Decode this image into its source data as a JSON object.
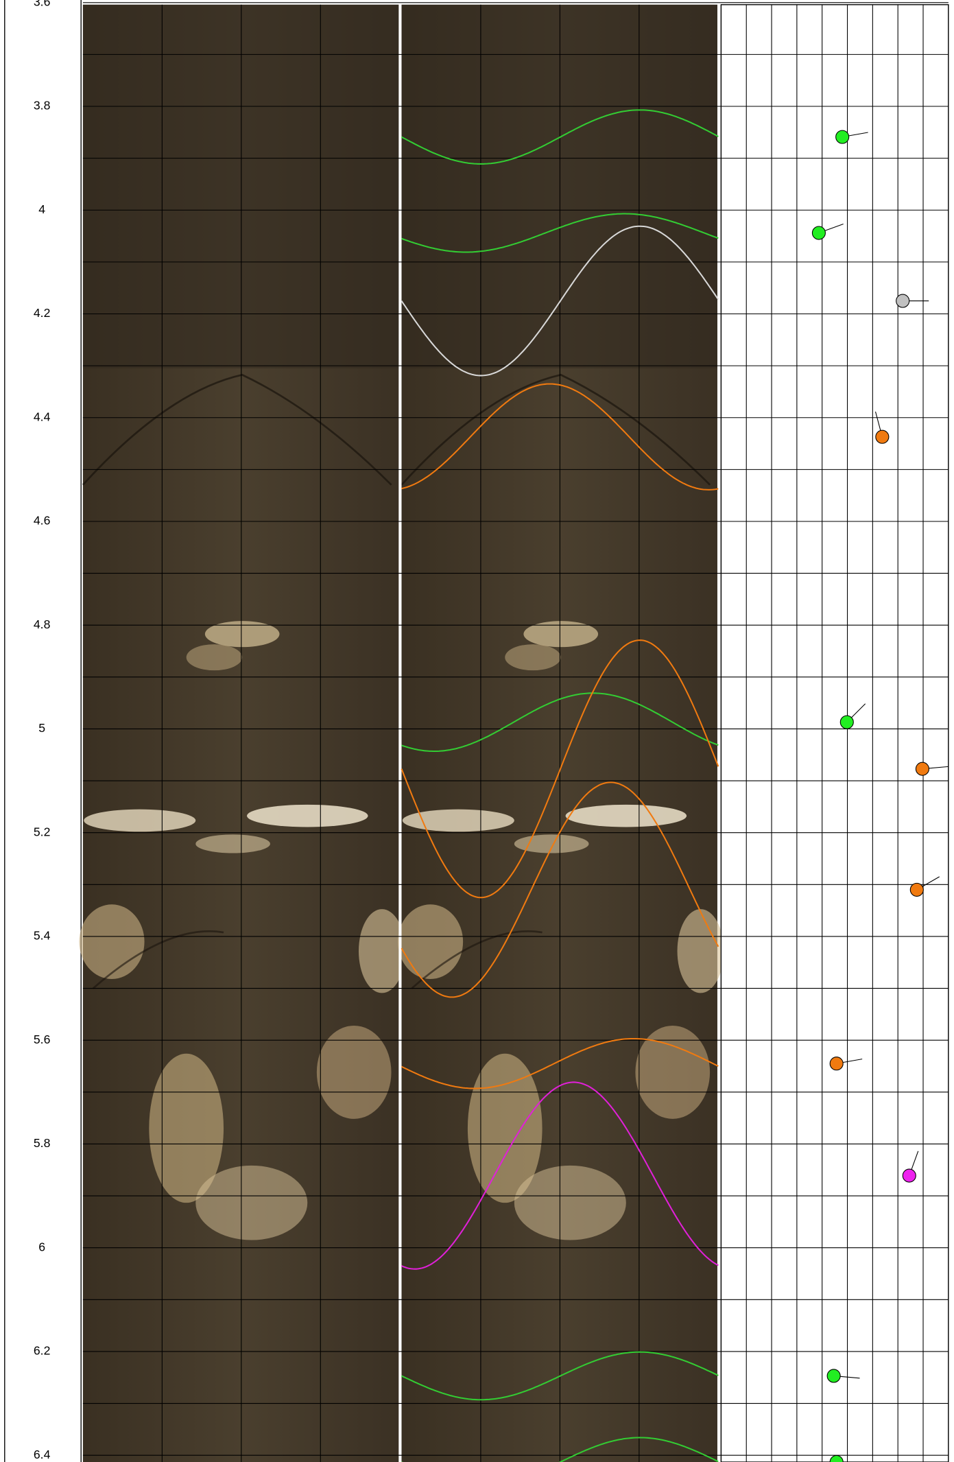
{
  "chart_data": {
    "type": "well-log",
    "ylim": [
      3.604,
      6.413
    ],
    "yticks": [
      3.6,
      3.8,
      4.0,
      4.2,
      4.4,
      4.6,
      4.8,
      5.0,
      5.2,
      5.4,
      5.6,
      5.8,
      6.0,
      6.2,
      6.4
    ],
    "minor_yticks": [
      3.7,
      3.9,
      4.1,
      4.3,
      4.5,
      4.7,
      4.9,
      5.1,
      5.3,
      5.5,
      5.7,
      5.9,
      6.1,
      6.3
    ],
    "xlim": [
      0,
      90
    ],
    "x_grid": [
      0,
      10,
      20,
      30,
      40,
      50,
      60,
      70,
      80,
      90
    ],
    "grid": true,
    "sinusoids": [
      {
        "depth": 3.859,
        "amplitude": 0.052,
        "azimuth": 90,
        "color": "#33cc33"
      },
      {
        "depth": 4.044,
        "amplitude": 0.037,
        "azimuth": 73,
        "color": "#33cc33"
      },
      {
        "depth": 4.175,
        "amplitude": 0.144,
        "azimuth": 90,
        "color": "#d8d8d8"
      },
      {
        "depth": 4.437,
        "amplitude": 0.102,
        "azimuth": 348,
        "color": "#f07a10"
      },
      {
        "depth": 4.987,
        "amplitude": 0.056,
        "azimuth": 37,
        "color": "#33cc33"
      },
      {
        "depth": 5.077,
        "amplitude": 0.248,
        "azimuth": 90,
        "color": "#f07a10"
      },
      {
        "depth": 5.31,
        "amplitude": 0.207,
        "azimuth": 57,
        "color": "#f07a10"
      },
      {
        "depth": 5.645,
        "amplitude": 0.048,
        "azimuth": 83,
        "color": "#f07a10"
      },
      {
        "depth": 5.861,
        "amplitude": 0.18,
        "azimuth": 15,
        "color": "#e020d8"
      },
      {
        "depth": 6.247,
        "amplitude": 0.046,
        "azimuth": 90,
        "color": "#33cc33"
      },
      {
        "depth": 6.413,
        "amplitude": 0.047,
        "azimuth": 90,
        "color": "#33cc33"
      }
    ],
    "tadpoles": [
      {
        "depth": 3.859,
        "dip": 48.0,
        "azimuth": 80,
        "color": "#22ee22"
      },
      {
        "depth": 4.044,
        "dip": 38.7,
        "azimuth": 70,
        "color": "#22ee22"
      },
      {
        "depth": 4.175,
        "dip": 71.9,
        "azimuth": 90,
        "color": "#c0c0c0"
      },
      {
        "depth": 4.437,
        "dip": 63.8,
        "azimuth": 345,
        "color": "#f07a10"
      },
      {
        "depth": 4.987,
        "dip": 49.8,
        "azimuth": 45,
        "color": "#22ee22"
      },
      {
        "depth": 5.077,
        "dip": 79.7,
        "azimuth": 85,
        "color": "#f07a10"
      },
      {
        "depth": 5.31,
        "dip": 77.5,
        "azimuth": 60,
        "color": "#f07a10"
      },
      {
        "depth": 5.645,
        "dip": 45.7,
        "azimuth": 80,
        "color": "#f07a10"
      },
      {
        "depth": 5.861,
        "dip": 74.5,
        "azimuth": 20,
        "color": "#ee22ee"
      },
      {
        "depth": 6.247,
        "dip": 44.6,
        "azimuth": 95,
        "color": "#22ee22"
      },
      {
        "depth": 6.413,
        "dip": 45.7,
        "azimuth": 90,
        "color": "#22ee22"
      }
    ]
  }
}
